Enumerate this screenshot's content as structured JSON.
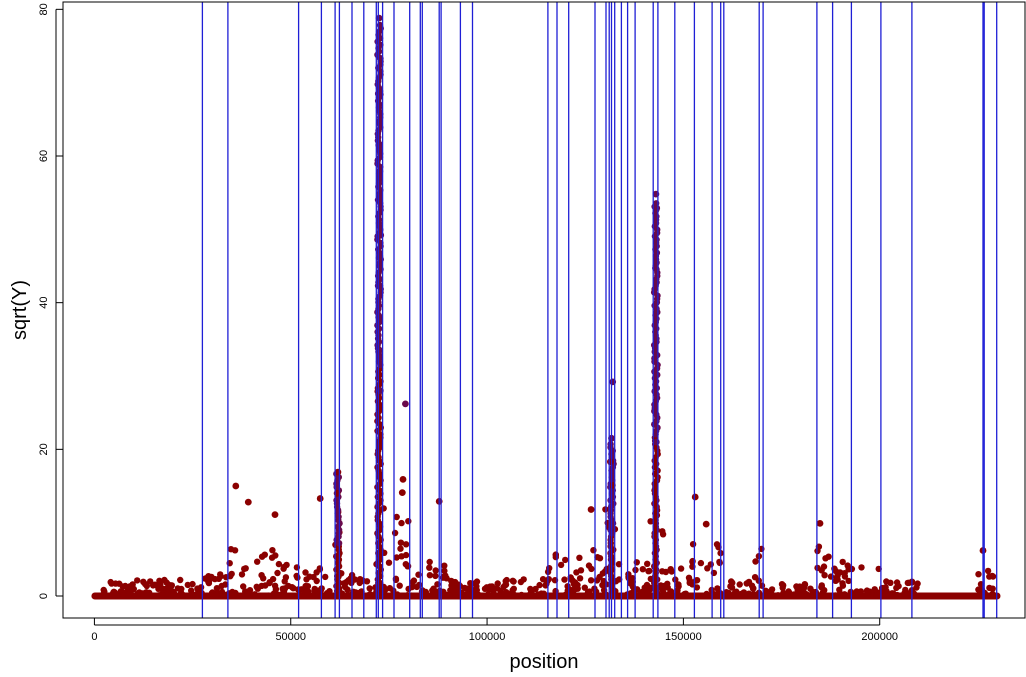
{
  "chart_data": {
    "type": "scatter",
    "xlabel": "position",
    "ylabel": "sqrt(Y)",
    "xlim": [
      -8000,
      237000
    ],
    "ylim": [
      -3,
      81
    ],
    "x_ticks": [
      0,
      50000,
      100000,
      150000,
      200000
    ],
    "x_tick_labels": [
      "0",
      "50000",
      "100000",
      "150000",
      "200000"
    ],
    "y_ticks": [
      0,
      20,
      40,
      60,
      80
    ],
    "y_tick_labels": [
      "0",
      "20",
      "40",
      "60",
      "80"
    ],
    "grid": false,
    "colors": {
      "points": "#8b0000",
      "highlight_points": "#6a0a4a",
      "vlines": "#1f1fd6",
      "axis": "#000000"
    },
    "baseline": {
      "x_start": 0,
      "x_end": 230000,
      "y": 0
    },
    "peaks": [
      {
        "x": 72500,
        "y": 78.8
      },
      {
        "x": 72800,
        "y": 73.3
      },
      {
        "x": 72300,
        "y": 68.5
      },
      {
        "x": 72600,
        "y": 64.6
      },
      {
        "x": 72400,
        "y": 61.5
      },
      {
        "x": 72700,
        "y": 57.9
      },
      {
        "x": 72600,
        "y": 54.1
      },
      {
        "x": 72900,
        "y": 49.2
      },
      {
        "x": 72500,
        "y": 46.1
      },
      {
        "x": 72700,
        "y": 42.3
      },
      {
        "x": 72400,
        "y": 38.0
      },
      {
        "x": 72600,
        "y": 33.5
      },
      {
        "x": 72800,
        "y": 28.0
      },
      {
        "x": 79200,
        "y": 26.2
      },
      {
        "x": 143000,
        "y": 54.8
      },
      {
        "x": 143200,
        "y": 52.9
      },
      {
        "x": 142900,
        "y": 44.7
      },
      {
        "x": 143100,
        "y": 38.6
      },
      {
        "x": 142700,
        "y": 34.2
      },
      {
        "x": 143000,
        "y": 30.1
      },
      {
        "x": 142800,
        "y": 25.5
      },
      {
        "x": 143100,
        "y": 21.0
      },
      {
        "x": 132000,
        "y": 29.2
      },
      {
        "x": 131700,
        "y": 21.5
      },
      {
        "x": 131400,
        "y": 18.3
      },
      {
        "x": 131900,
        "y": 15.1
      },
      {
        "x": 36000,
        "y": 15.0
      },
      {
        "x": 39200,
        "y": 12.8
      },
      {
        "x": 46000,
        "y": 11.1
      },
      {
        "x": 62000,
        "y": 16.9
      },
      {
        "x": 61800,
        "y": 14.0
      },
      {
        "x": 57500,
        "y": 13.3
      },
      {
        "x": 78600,
        "y": 15.9
      },
      {
        "x": 78400,
        "y": 14.1
      },
      {
        "x": 87800,
        "y": 12.9
      },
      {
        "x": 126500,
        "y": 11.8
      },
      {
        "x": 153000,
        "y": 13.5
      },
      {
        "x": 155800,
        "y": 9.8
      },
      {
        "x": 184800,
        "y": 9.9
      },
      {
        "x": 226300,
        "y": 6.2
      }
    ],
    "vlines": [
      27500,
      34000,
      52000,
      57800,
      61300,
      62400,
      65600,
      68600,
      71800,
      72300,
      73400,
      76300,
      80300,
      83000,
      83500,
      87800,
      88300,
      93200,
      96300,
      115500,
      117800,
      120800,
      127500,
      130300,
      131100,
      131700,
      132500,
      134200,
      135800,
      137700,
      142300,
      143500,
      147800,
      152800,
      157300,
      159500,
      160300,
      169300,
      170300,
      184000,
      188000,
      192800,
      200300,
      208200,
      226300,
      226600,
      229800
    ]
  }
}
